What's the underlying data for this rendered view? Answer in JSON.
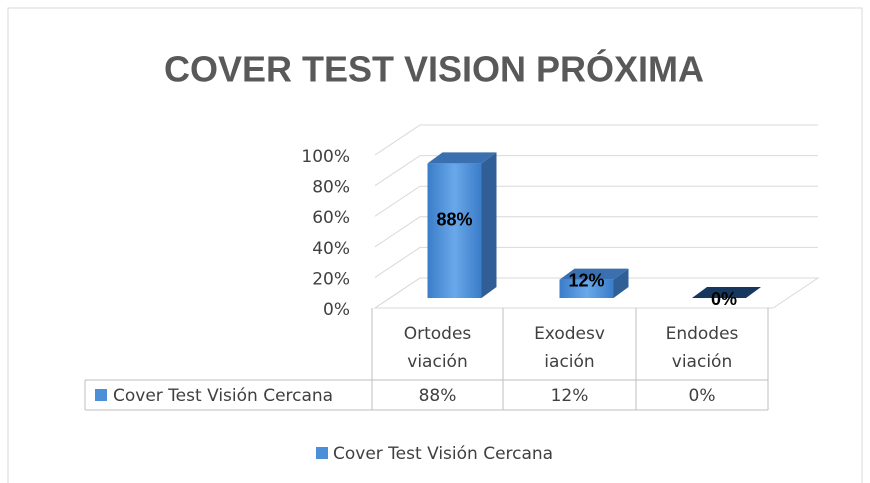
{
  "chart_data": {
    "type": "bar3d",
    "title": "COVER TEST VISION PRÓXIMA",
    "categories": [
      "Ortodes viación",
      "Exodesv iación",
      "Endodes viación"
    ],
    "series": [
      {
        "name": "Cover Test Visión Cercana",
        "color": "#4a8fd8",
        "values": [
          88,
          12,
          0
        ],
        "value_labels": [
          "88%",
          "12%",
          "0%"
        ]
      }
    ],
    "ylim": [
      0,
      100
    ],
    "yticks": [
      {
        "value": 0,
        "label": "0%"
      },
      {
        "value": 20,
        "label": "20%"
      },
      {
        "value": 40,
        "label": "40%"
      },
      {
        "value": 60,
        "label": "60%"
      },
      {
        "value": 80,
        "label": "80%"
      },
      {
        "value": 100,
        "label": "100%"
      }
    ],
    "grid": true,
    "legend": "bottom",
    "data_table": true
  }
}
